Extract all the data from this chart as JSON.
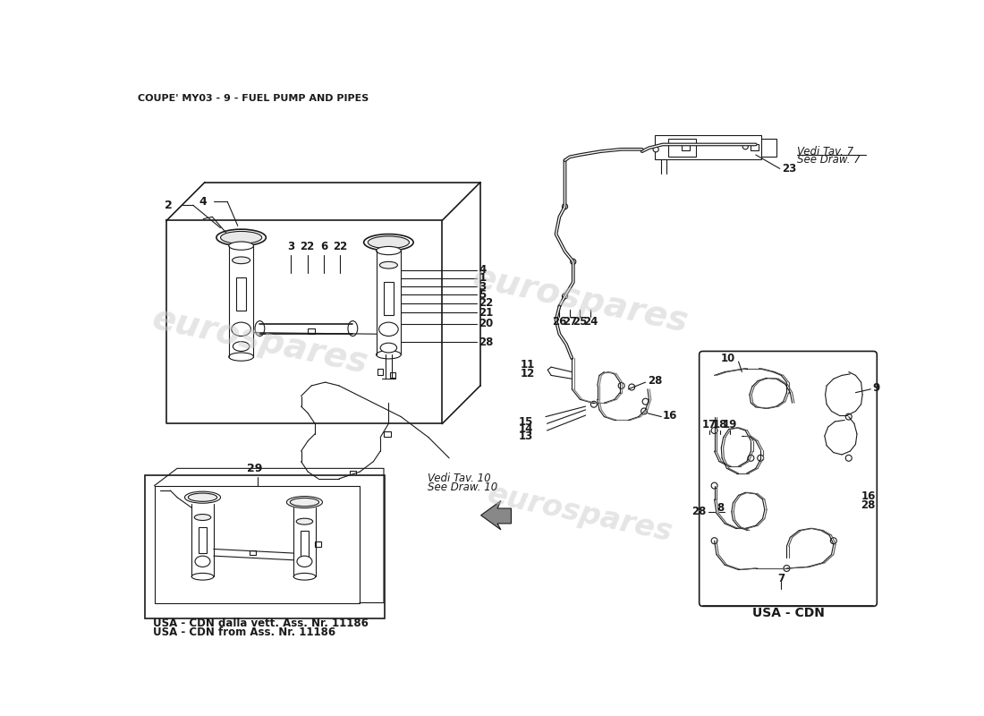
{
  "title": "COUPE' MY03 - 9 - FUEL PUMP AND PIPES",
  "bg": "#ffffff",
  "lc": "#1a1a1a",
  "watermark": "eurospares",
  "vedi7_1": "Vedi Tav. 7",
  "vedi7_2": "See Draw. 7",
  "vedi10_1": "Vedi Tav. 10",
  "vedi10_2": "See Draw. 10",
  "usa_line1": "USA - CDN dalla vett. Ass. Nr. 11186",
  "usa_line2": "USA - CDN from Ass. Nr. 11186",
  "usa_box": "USA - CDN"
}
